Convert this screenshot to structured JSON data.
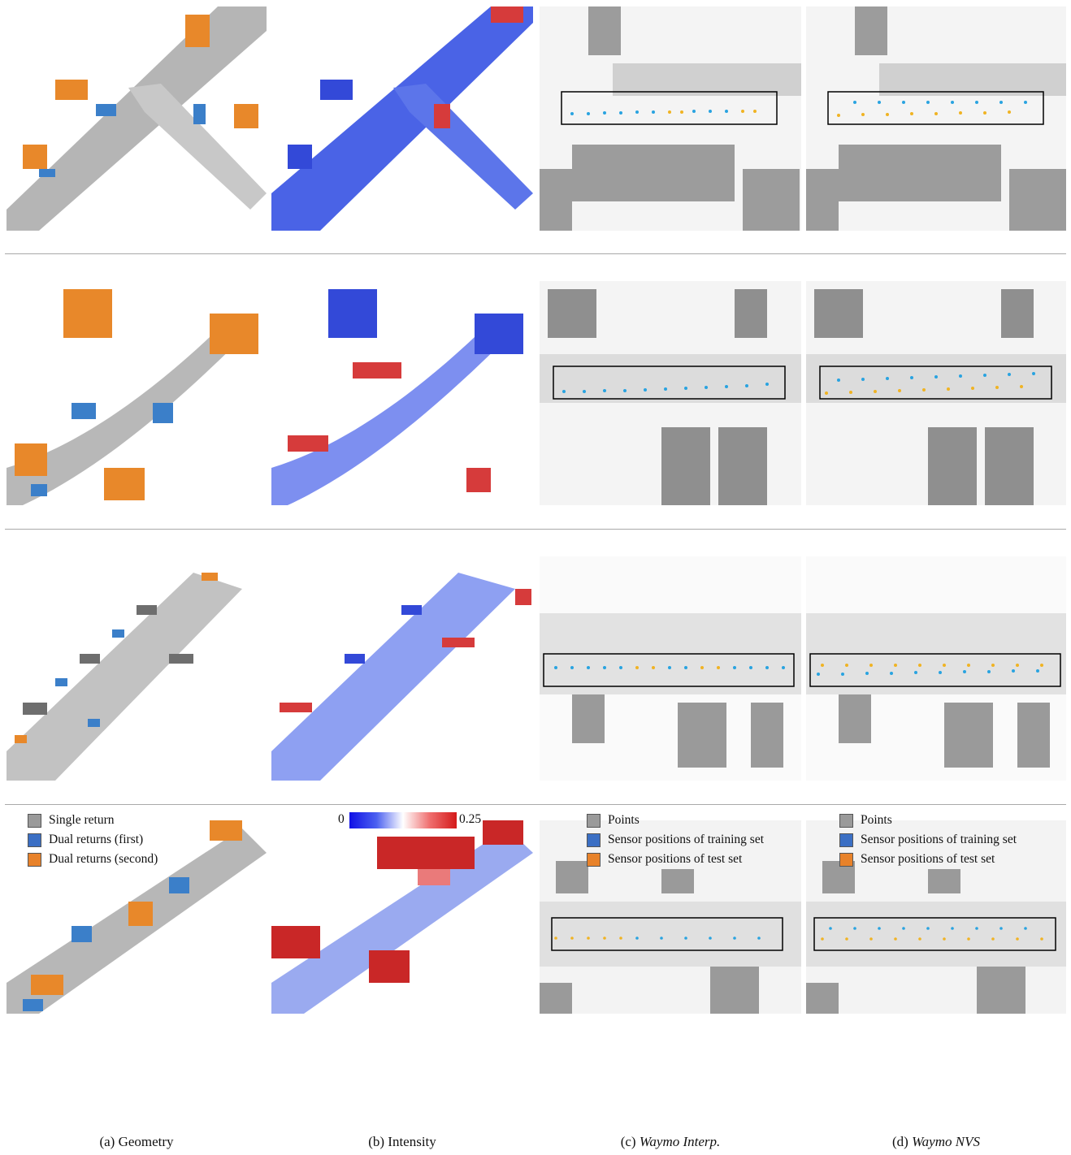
{
  "legend_a": [
    {
      "label": "Single return",
      "color": "#9a9a9a"
    },
    {
      "label": "Dual returns (first)",
      "color": "#3b6fc4"
    },
    {
      "label": "Dual returns (second)",
      "color": "#e8822a"
    }
  ],
  "legend_c": [
    {
      "label": "Points",
      "color": "#9a9a9a"
    },
    {
      "label": "Sensor positions of training set",
      "color": "#3b6fc4"
    },
    {
      "label": "Sensor positions of test set",
      "color": "#e8822a"
    }
  ],
  "legend_d": [
    {
      "label": "Points",
      "color": "#9a9a9a"
    },
    {
      "label": "Sensor positions of training set",
      "color": "#3b6fc4"
    },
    {
      "label": "Sensor positions of test set",
      "color": "#e8822a"
    }
  ],
  "colorbar": {
    "min_label": "0",
    "max_label": "0.25"
  },
  "captions": {
    "a": {
      "prefix": "(a) ",
      "text": "Geometry"
    },
    "b": {
      "prefix": "(b) ",
      "text": "Intensity"
    },
    "c": {
      "prefix": "(c) ",
      "text": "Waymo Interp."
    },
    "d": {
      "prefix": "(d) ",
      "text": "Waymo NVS"
    }
  },
  "colors": {
    "gray": "#a8a8a8",
    "blue_return": "#3b7fc9",
    "orange_return": "#e8882a",
    "train_dot": "#29a3e0",
    "test_dot": "#f0b323"
  }
}
